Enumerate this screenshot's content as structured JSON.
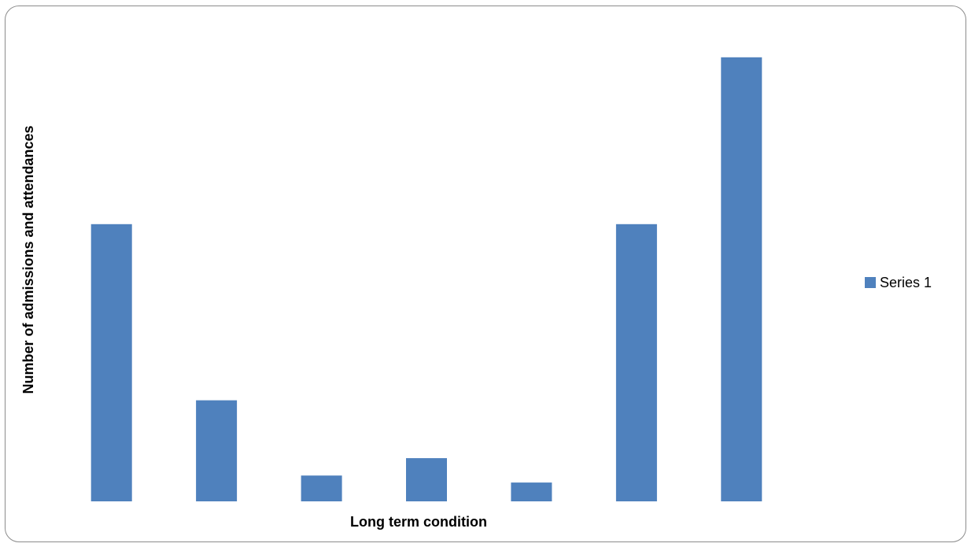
{
  "chart_data": {
    "type": "bar",
    "title": "",
    "xlabel": "Long term condition",
    "ylabel": "Number of admissions and attendances",
    "categories": [
      "",
      "",
      "",
      "",
      "",
      "",
      ""
    ],
    "series": [
      {
        "name": "Series 1",
        "color": "#4F81BD",
        "values": [
          5.9,
          2.15,
          0.55,
          0.92,
          0.4,
          5.9,
          9.45
        ]
      }
    ],
    "ylim": [
      0,
      10
    ],
    "grid": false,
    "legend": {
      "position": "right",
      "entries": [
        "Series 1"
      ]
    }
  }
}
